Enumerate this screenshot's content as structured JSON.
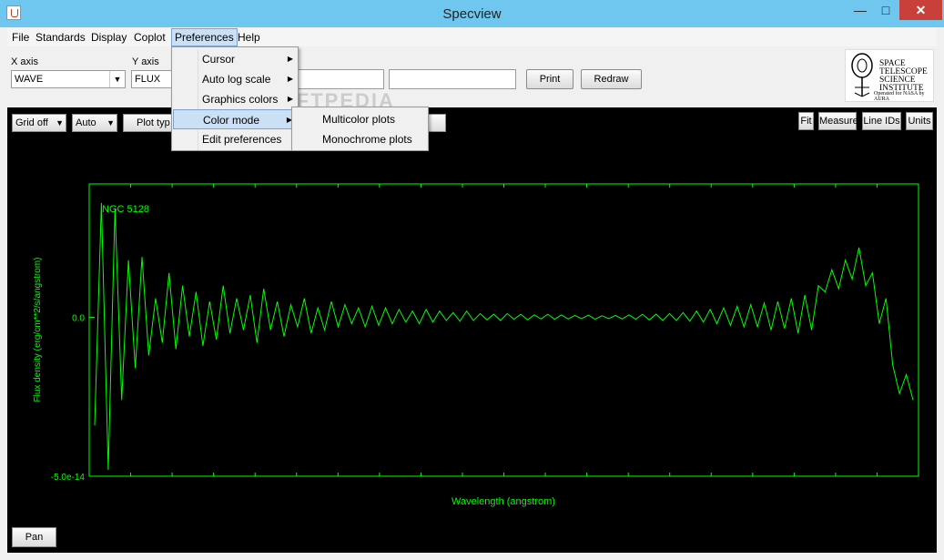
{
  "window": {
    "title": "Specview",
    "minimize": "—",
    "maximize": "□",
    "close": "✕"
  },
  "menubar": {
    "items": [
      "File",
      "Standards",
      "Display",
      "Coplot",
      "Preferences",
      "Help"
    ],
    "active": "Preferences"
  },
  "toolbar": {
    "x_axis_label": "X axis",
    "x_axis_value": "WAVE",
    "y_axis_label": "Y axis",
    "y_axis_value": "FLUX",
    "print_label": "Print",
    "redraw_label": "Redraw"
  },
  "logo": {
    "line1": "SPACE",
    "line2": "TELESCOPE",
    "line3": "SCIENCE",
    "line4": "INSTITUTE",
    "sub": "Operated for NASA by AURA"
  },
  "plot_controls": {
    "grid": "Grid off",
    "scale": "Auto",
    "plot_type": "Plot typ",
    "fit": "Fit",
    "measure": "Measure",
    "line_ids": "Line IDs",
    "units": "Units",
    "pan": "Pan"
  },
  "preferences_menu": {
    "items": [
      "Cursor",
      "Auto log scale",
      "Graphics colors",
      "Color mode",
      "Edit preferences"
    ],
    "highlighted": "Color mode"
  },
  "color_mode_submenu": {
    "items": [
      "Multicolor plots",
      "Monochrome plots"
    ]
  },
  "watermark": "SOFTPEDIA",
  "colors": {
    "plot_fg": "#00ff00",
    "plot_bg": "#000000",
    "titlebar": "#6fc6ee",
    "menu_highlight": "#cce0f5"
  },
  "chart_data": {
    "type": "line",
    "annotation": "NGC 5128",
    "xlabel": "Wavelength (angstrom)",
    "ylabel": "Flux density (erg/cm**2/s/angstrom)",
    "ytick_labels": [
      "0.0",
      "-5.0e-14"
    ],
    "yticks": [
      0.0,
      -5e-14
    ],
    "ylim": [
      -5e-14,
      4.2e-14
    ],
    "grid": false,
    "series": [
      {
        "values": [
          -3.4e-14,
          3.6e-14,
          -4.8e-14,
          3.4e-14,
          -2.6e-14,
          1.8e-14,
          -1.6e-14,
          1.9e-14,
          -1.2e-14,
          6e-15,
          -8e-15,
          1.4e-14,
          -1e-14,
          1e-14,
          -6e-15,
          8e-15,
          -9e-15,
          5e-15,
          -7e-15,
          1e-14,
          -5e-15,
          6e-15,
          -4e-15,
          7e-15,
          -8e-15,
          9e-15,
          -4e-15,
          5e-15,
          -6e-15,
          4e-15,
          -3e-15,
          6e-15,
          -5e-15,
          3e-15,
          -4e-15,
          5e-15,
          -3e-15,
          4e-15,
          -2e-15,
          3e-15,
          -3e-15,
          3.5e-15,
          -2.5e-15,
          3e-15,
          -2e-15,
          2.5e-15,
          -1.5e-15,
          2e-15,
          -2e-15,
          2.5e-15,
          -1.5e-15,
          2e-15,
          -1e-15,
          1.5e-15,
          -1.2e-15,
          2e-15,
          -1e-15,
          1.2e-15,
          -8e-16,
          1e-15,
          -1e-15,
          1.2e-15,
          -6e-16,
          1e-15,
          -8e-16,
          8e-16,
          -5e-16,
          1e-15,
          -6e-16,
          8e-16,
          -5e-16,
          6e-16,
          -4e-16,
          7e-16,
          -6e-16,
          5e-16,
          -4e-16,
          6e-16,
          -5e-16,
          8e-16,
          -6e-16,
          1e-15,
          -8e-16,
          1e-15,
          -1e-15,
          1.2e-15,
          -1e-15,
          1.5e-15,
          -1.2e-15,
          2e-15,
          -1.5e-15,
          2.5e-15,
          -2e-15,
          3e-15,
          -2.5e-15,
          3.5e-15,
          -3e-15,
          4e-15,
          -3e-15,
          4.5e-15,
          -4e-15,
          5e-15,
          -3.5e-15,
          6e-15,
          -5e-15,
          7e-15,
          -4e-15,
          1e-14,
          8e-15,
          1.5e-14,
          9e-15,
          1.8e-14,
          1.2e-14,
          2.2e-14,
          1e-14,
          1.4e-14,
          -2e-15,
          6e-15,
          -1.5e-14,
          -2.4e-14,
          -1.8e-14,
          -2.6e-14
        ]
      }
    ]
  }
}
